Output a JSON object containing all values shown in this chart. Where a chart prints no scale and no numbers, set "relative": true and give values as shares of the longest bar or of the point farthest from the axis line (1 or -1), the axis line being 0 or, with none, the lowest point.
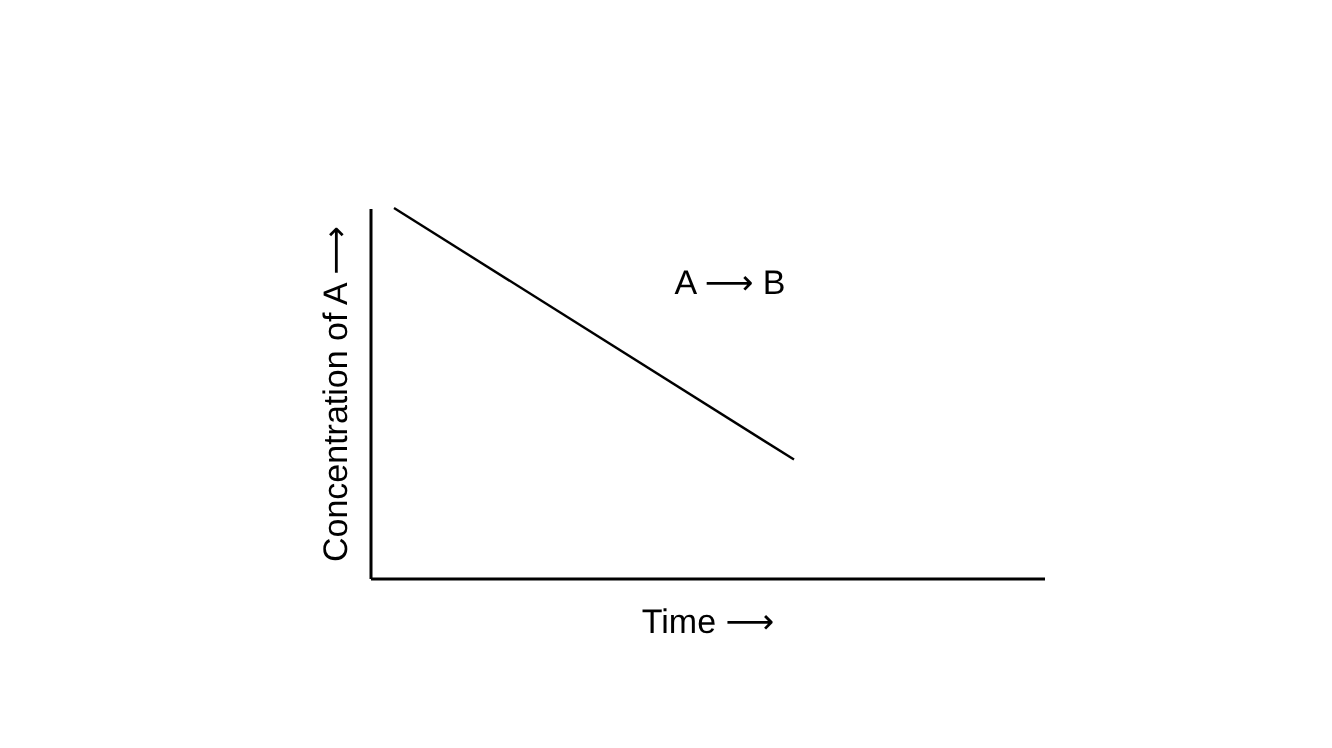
{
  "chart_data": {
    "type": "line",
    "relative": true,
    "xlabel": "Time ⟶",
    "ylabel": "Concentration of A ⟶",
    "annotations": [
      "A ⟶ B"
    ],
    "categories": [
      null,
      null
    ],
    "series": [
      {
        "color": "#000000",
        "values": [
          1,
          0.32
        ]
      }
    ],
    "grid": false,
    "marker": "none",
    "line_style": "solid",
    "tick_labels": false
  }
}
